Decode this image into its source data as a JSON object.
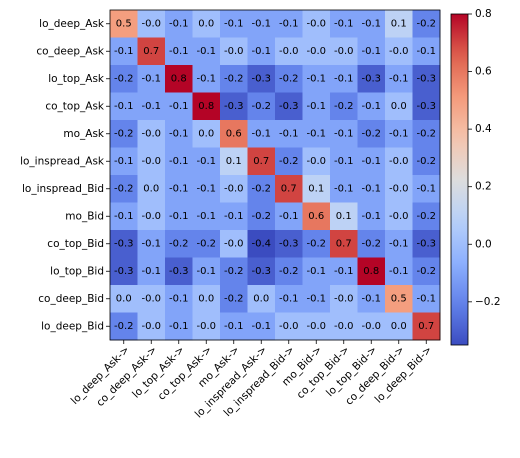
{
  "chart_data": {
    "type": "heatmap",
    "rows": [
      "lo_deep_Ask",
      "co_deep_Ask",
      "lo_top_Ask",
      "co_top_Ask",
      "mo_Ask",
      "lo_inspread_Ask",
      "lo_inspread_Bid",
      "mo_Bid",
      "co_top_Bid",
      "lo_top_Bid",
      "co_deep_Bid",
      "lo_deep_Bid"
    ],
    "columns": [
      "lo_deep_Ask->",
      "co_deep_Ask->",
      "lo_top_Ask->",
      "co_top_Ask->",
      "mo_Ask->",
      "lo_inspread_Ask->",
      "lo_inspread_Bid->",
      "mo_Bid->",
      "co_top_Bid->",
      "lo_top_Bid->",
      "co_deep_Bid->",
      "lo_deep_Bid->"
    ],
    "values": [
      [
        0.5,
        -0.0,
        -0.1,
        0.0,
        -0.1,
        -0.1,
        -0.1,
        -0.0,
        -0.1,
        -0.1,
        0.1,
        -0.2
      ],
      [
        -0.1,
        0.7,
        -0.1,
        -0.1,
        -0.0,
        -0.1,
        -0.0,
        -0.0,
        -0.0,
        -0.1,
        -0.0,
        -0.1
      ],
      [
        -0.2,
        -0.1,
        0.8,
        -0.1,
        -0.2,
        -0.3,
        -0.2,
        -0.1,
        -0.1,
        -0.3,
        -0.1,
        -0.3
      ],
      [
        -0.1,
        -0.1,
        -0.1,
        0.8,
        -0.3,
        -0.2,
        -0.3,
        -0.1,
        -0.2,
        -0.1,
        0.0,
        -0.3
      ],
      [
        -0.2,
        -0.0,
        -0.1,
        0.0,
        0.6,
        -0.1,
        -0.1,
        -0.1,
        -0.1,
        -0.2,
        -0.1,
        -0.2
      ],
      [
        -0.1,
        -0.0,
        -0.1,
        -0.1,
        0.1,
        0.7,
        -0.2,
        -0.0,
        -0.1,
        -0.1,
        -0.0,
        -0.2
      ],
      [
        -0.2,
        0.0,
        -0.1,
        -0.1,
        -0.0,
        -0.2,
        0.7,
        0.1,
        -0.1,
        -0.1,
        -0.0,
        -0.1
      ],
      [
        -0.1,
        -0.0,
        -0.1,
        -0.1,
        -0.1,
        -0.2,
        -0.1,
        0.6,
        0.1,
        -0.1,
        -0.0,
        -0.2
      ],
      [
        -0.3,
        -0.1,
        -0.2,
        -0.2,
        -0.0,
        -0.4,
        -0.3,
        -0.2,
        0.7,
        -0.2,
        -0.1,
        -0.3
      ],
      [
        -0.3,
        -0.1,
        -0.3,
        -0.1,
        -0.2,
        -0.3,
        -0.2,
        -0.1,
        -0.1,
        0.8,
        -0.1,
        -0.2
      ],
      [
        0.0,
        -0.0,
        -0.1,
        0.0,
        -0.2,
        0.0,
        -0.1,
        -0.1,
        -0.0,
        -0.1,
        0.5,
        -0.1
      ],
      [
        -0.2,
        -0.0,
        -0.1,
        -0.0,
        -0.1,
        -0.1,
        -0.0,
        -0.0,
        -0.0,
        -0.0,
        0.0,
        0.7
      ]
    ],
    "colormap": "coolwarm",
    "vmin": -0.35,
    "vmax": 0.8,
    "colorbar_ticks": [
      "-0.2",
      "0.0",
      "0.2",
      "0.4",
      "0.6",
      "0.8"
    ],
    "colorbar_tick_values": [
      -0.2,
      0.0,
      0.2,
      0.4,
      0.6,
      0.8
    ],
    "title": "",
    "xlabel": "",
    "ylabel": ""
  }
}
